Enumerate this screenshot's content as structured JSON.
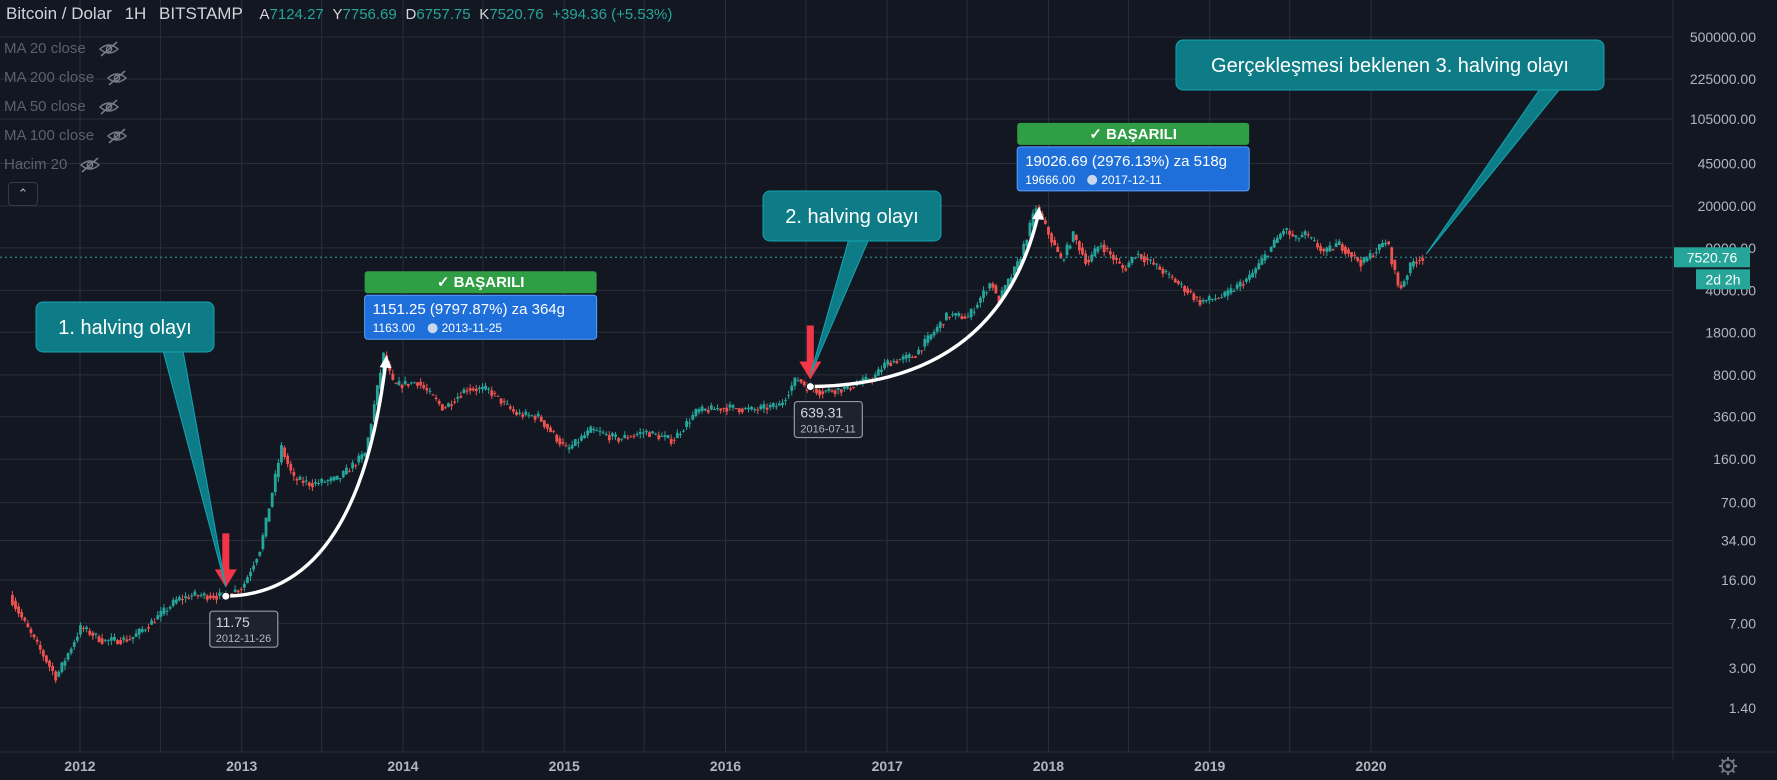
{
  "header": {
    "symbol": "Bitcoin / Dolar",
    "interval": "1H",
    "exchange": "BITSTAMP",
    "open_label": "A",
    "open": "7124.27",
    "high_label": "Y",
    "high": "7756.69",
    "low_label": "D",
    "low": "6757.75",
    "close_label": "K",
    "close": "7520.76",
    "change": "+394.36 (+5.53%)"
  },
  "indicators": [
    {
      "label": "MA 20 close"
    },
    {
      "label": "MA 200 close"
    },
    {
      "label": "MA 50 close"
    },
    {
      "label": "MA 100 close"
    },
    {
      "label": "Hacim 20"
    }
  ],
  "colors": {
    "background": "#131722",
    "grid": "#2a2e39",
    "up": "#26a69a",
    "down": "#ef5350",
    "callout": "#0e7c86",
    "measure_blue": "#1e6fd9",
    "success_green": "#2f9e44",
    "arrow_red": "#f23645",
    "price_line": "#26a69a"
  },
  "chart_data": {
    "type": "candlestick",
    "x_axis": {
      "tick_labels": [
        "2012",
        "2013",
        "2014",
        "2015",
        "2016",
        "2017",
        "2018",
        "2019",
        "2020"
      ],
      "range": [
        "2011-08-01",
        "2020-06-30"
      ]
    },
    "y_axis": {
      "scale": "log",
      "tick_labels": [
        "500000.00",
        "225000.00",
        "105000.00",
        "45000.00",
        "20000.00",
        "9000.00",
        "4000.00",
        "1800.00",
        "800.00",
        "360.00",
        "160.00",
        "70.00",
        "34.00",
        "16.00",
        "7.00",
        "3.00",
        "1.40"
      ],
      "tick_values": [
        500000,
        225000,
        105000,
        45000,
        20000,
        9000,
        4000,
        1800,
        800,
        360,
        160,
        70,
        34,
        16,
        7,
        3,
        1.4
      ]
    },
    "current_price": {
      "label": "7520.76",
      "value": 7520.76,
      "countdown": "2d 2h"
    },
    "price_path": [
      [
        "2011-08-01",
        12
      ],
      [
        "2011-09-15",
        6
      ],
      [
        "2011-11-15",
        2.5
      ],
      [
        "2012-01-10",
        6.5
      ],
      [
        "2012-03-01",
        5
      ],
      [
        "2012-05-01",
        5.2
      ],
      [
        "2012-06-15",
        7
      ],
      [
        "2012-08-15",
        11
      ],
      [
        "2012-09-20",
        12
      ],
      [
        "2012-11-26",
        11.75
      ],
      [
        "2013-01-10",
        14
      ],
      [
        "2013-02-20",
        30
      ],
      [
        "2013-04-08",
        200
      ],
      [
        "2013-05-05",
        110
      ],
      [
        "2013-06-15",
        100
      ],
      [
        "2013-08-15",
        110
      ],
      [
        "2013-10-15",
        180
      ],
      [
        "2013-11-25",
        1163
      ],
      [
        "2013-12-18",
        650
      ],
      [
        "2014-02-10",
        700
      ],
      [
        "2014-04-10",
        420
      ],
      [
        "2014-06-01",
        620
      ],
      [
        "2014-07-20",
        600
      ],
      [
        "2014-09-20",
        380
      ],
      [
        "2014-11-10",
        360
      ],
      [
        "2015-01-14",
        190
      ],
      [
        "2015-03-10",
        280
      ],
      [
        "2015-05-10",
        235
      ],
      [
        "2015-07-10",
        270
      ],
      [
        "2015-09-10",
        230
      ],
      [
        "2015-11-04",
        400
      ],
      [
        "2016-01-10",
        430
      ],
      [
        "2016-03-10",
        410
      ],
      [
        "2016-05-10",
        450
      ],
      [
        "2016-06-17",
        750
      ],
      [
        "2016-07-11",
        639.31
      ],
      [
        "2016-08-10",
        580
      ],
      [
        "2016-10-10",
        620
      ],
      [
        "2016-12-10",
        770
      ],
      [
        "2017-01-05",
        1000
      ],
      [
        "2017-03-10",
        1150
      ],
      [
        "2017-05-25",
        2500
      ],
      [
        "2017-07-10",
        2400
      ],
      [
        "2017-09-01",
        4800
      ],
      [
        "2017-09-15",
        3200
      ],
      [
        "2017-11-01",
        6800
      ],
      [
        "2017-12-11",
        19666
      ],
      [
        "2018-02-06",
        7000
      ],
      [
        "2018-03-05",
        11500
      ],
      [
        "2018-04-06",
        6700
      ],
      [
        "2018-05-05",
        9800
      ],
      [
        "2018-06-28",
        5900
      ],
      [
        "2018-07-25",
        8200
      ],
      [
        "2018-09-10",
        6300
      ],
      [
        "2018-11-25",
        3800
      ],
      [
        "2018-12-15",
        3200
      ],
      [
        "2019-02-10",
        3600
      ],
      [
        "2019-04-10",
        5200
      ],
      [
        "2019-06-26",
        13000
      ],
      [
        "2019-07-20",
        10500
      ],
      [
        "2019-08-10",
        11800
      ],
      [
        "2019-09-25",
        8200
      ],
      [
        "2019-10-26",
        9800
      ],
      [
        "2019-12-18",
        6700
      ],
      [
        "2020-02-13",
        10400
      ],
      [
        "2020-03-12",
        4000
      ],
      [
        "2020-04-10",
        6800
      ],
      [
        "2020-04-30",
        7520
      ]
    ],
    "measurements": [
      {
        "from_date": "2012-11-26",
        "from_value": 11.75,
        "to_date": "2013-11-25",
        "to_value": 1163,
        "status": "✓ BAŞARILI",
        "info": "1151.25 (9797.87%) za 364g",
        "sub_price": "1163.00",
        "sub_date": "2013-11-25"
      },
      {
        "from_date": "2016-07-11",
        "from_value": 639.31,
        "to_date": "2017-12-11",
        "to_value": 19666,
        "status": "✓ BAŞARILI",
        "info": "19026.69 (2976.13%) za 518g",
        "sub_price": "19666.00",
        "sub_date": "2017-12-11"
      }
    ],
    "price_tags": [
      {
        "price": "11.75",
        "date": "2012-11-26"
      },
      {
        "price": "639.31",
        "date": "2016-07-11"
      }
    ],
    "callouts": [
      {
        "text": "1. halving olayı",
        "point_date": "2012-11-26",
        "point_value": 14
      },
      {
        "text": "2. halving olayı",
        "point_date": "2016-07-11",
        "point_value": 800
      },
      {
        "text": "Gerçekleşmesi beklenen 3. halving olayı",
        "point_date": "2020-05-05",
        "point_value": 8000
      }
    ],
    "halving_arrows": [
      {
        "date": "2012-11-26",
        "value": 15
      },
      {
        "date": "2016-07-11",
        "value": 790
      }
    ]
  }
}
